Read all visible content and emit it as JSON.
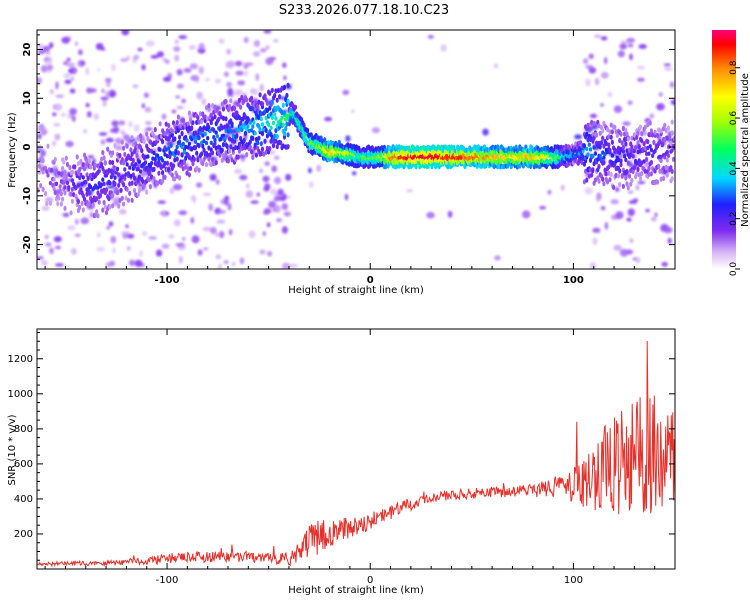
{
  "title": "S233.2026.077.18.10.C23",
  "colors": {
    "background": "#ffffff",
    "axis": "#000000",
    "snr_line": "#e8302a"
  },
  "chart_data": [
    {
      "type": "heatmap",
      "xlabel": "Height of straight line (km)",
      "ylabel": "Frequency (Hz)",
      "xlim": [
        -164,
        150
      ],
      "ylim": [
        -25,
        24
      ],
      "xticks": [
        -100,
        0,
        100
      ],
      "xtick_labels": [
        "-100",
        "0",
        "100"
      ],
      "yticks": [
        -20,
        -10,
        0,
        10,
        20
      ],
      "ytick_labels": [
        "-20",
        "-10",
        "0",
        "10",
        "20"
      ],
      "ridge_x": [
        -164,
        -150,
        -135,
        -125,
        -110,
        -95,
        -80,
        -70,
        -60,
        -50,
        -42,
        -38,
        -34,
        -30,
        -25,
        -20,
        -15,
        -10,
        -5,
        0,
        5,
        10,
        20,
        30,
        40,
        50,
        60,
        70,
        80,
        90,
        95,
        100,
        105,
        110,
        120,
        130,
        140,
        150
      ],
      "ridge_freq": [
        -5,
        -7,
        -8,
        -6,
        -3,
        0,
        2,
        3,
        4,
        5,
        6,
        7,
        4,
        1,
        0,
        -1,
        -1,
        -1.5,
        -2,
        -2,
        -2,
        -2,
        -2,
        -2,
        -2,
        -2,
        -2,
        -2,
        -2,
        -2,
        -2,
        -1.5,
        -1,
        -1,
        -2,
        -2,
        -1,
        -1
      ],
      "ridge_amplitude": [
        0.1,
        0.15,
        0.25,
        0.2,
        0.25,
        0.3,
        0.3,
        0.3,
        0.35,
        0.4,
        0.5,
        0.45,
        0.5,
        0.55,
        0.6,
        0.8,
        0.7,
        0.6,
        0.5,
        0.55,
        0.6,
        0.85,
        0.95,
        0.95,
        0.9,
        0.85,
        0.8,
        0.75,
        0.8,
        0.6,
        0.4,
        0.3,
        0.35,
        0.3,
        0.25,
        0.2,
        0.2,
        0.15
      ],
      "colorbar": {
        "label": "Normalized spectral amplitude",
        "range": [
          0,
          0.95
        ],
        "ticks": [
          0,
          0.2,
          0.4,
          0.6,
          0.8
        ],
        "tick_labels": [
          "0.0",
          "0.2",
          "0.4",
          "0.6",
          "0.8"
        ]
      }
    },
    {
      "type": "line",
      "xlabel": "Height of straight line (km)",
      "ylabel": "SNR (10 * v/v)",
      "xlim": [
        -164,
        150
      ],
      "ylim": [
        0,
        1370
      ],
      "xticks": [
        -100,
        0,
        100
      ],
      "xtick_labels": [
        "-100",
        "0",
        "100"
      ],
      "yticks": [
        200,
        400,
        600,
        800,
        1000,
        1200
      ],
      "ytick_labels": [
        "200",
        "400",
        "600",
        "800",
        "1000",
        "1200"
      ],
      "series": [
        {
          "name": "SNR",
          "x": [
            -164,
            -150,
            -140,
            -130,
            -120,
            -110,
            -100,
            -90,
            -80,
            -70,
            -60,
            -50,
            -40,
            -35,
            -30,
            -25,
            -20,
            -15,
            -10,
            -5,
            0,
            5,
            10,
            15,
            20,
            25,
            30,
            40,
            50,
            60,
            70,
            80,
            85,
            90,
            95,
            100,
            105,
            110,
            115,
            120,
            125,
            130,
            135,
            140,
            145,
            150
          ],
          "values": [
            30,
            30,
            32,
            35,
            40,
            48,
            60,
            65,
            70,
            72,
            70,
            60,
            60,
            90,
            160,
            180,
            200,
            220,
            240,
            260,
            270,
            300,
            320,
            350,
            370,
            390,
            410,
            420,
            430,
            440,
            440,
            450,
            460,
            470,
            470,
            480,
            490,
            520,
            560,
            600,
            620,
            640,
            650,
            650,
            640,
            600
          ],
          "noise_amplitude": [
            12,
            12,
            14,
            15,
            18,
            22,
            30,
            30,
            32,
            32,
            30,
            28,
            40,
            60,
            90,
            100,
            80,
            70,
            60,
            60,
            50,
            45,
            40,
            35,
            35,
            30,
            30,
            30,
            30,
            30,
            35,
            40,
            50,
            60,
            70,
            100,
            150,
            200,
            250,
            300,
            300,
            350,
            350,
            380,
            350,
            300
          ],
          "color": "#e8302a"
        }
      ]
    }
  ]
}
